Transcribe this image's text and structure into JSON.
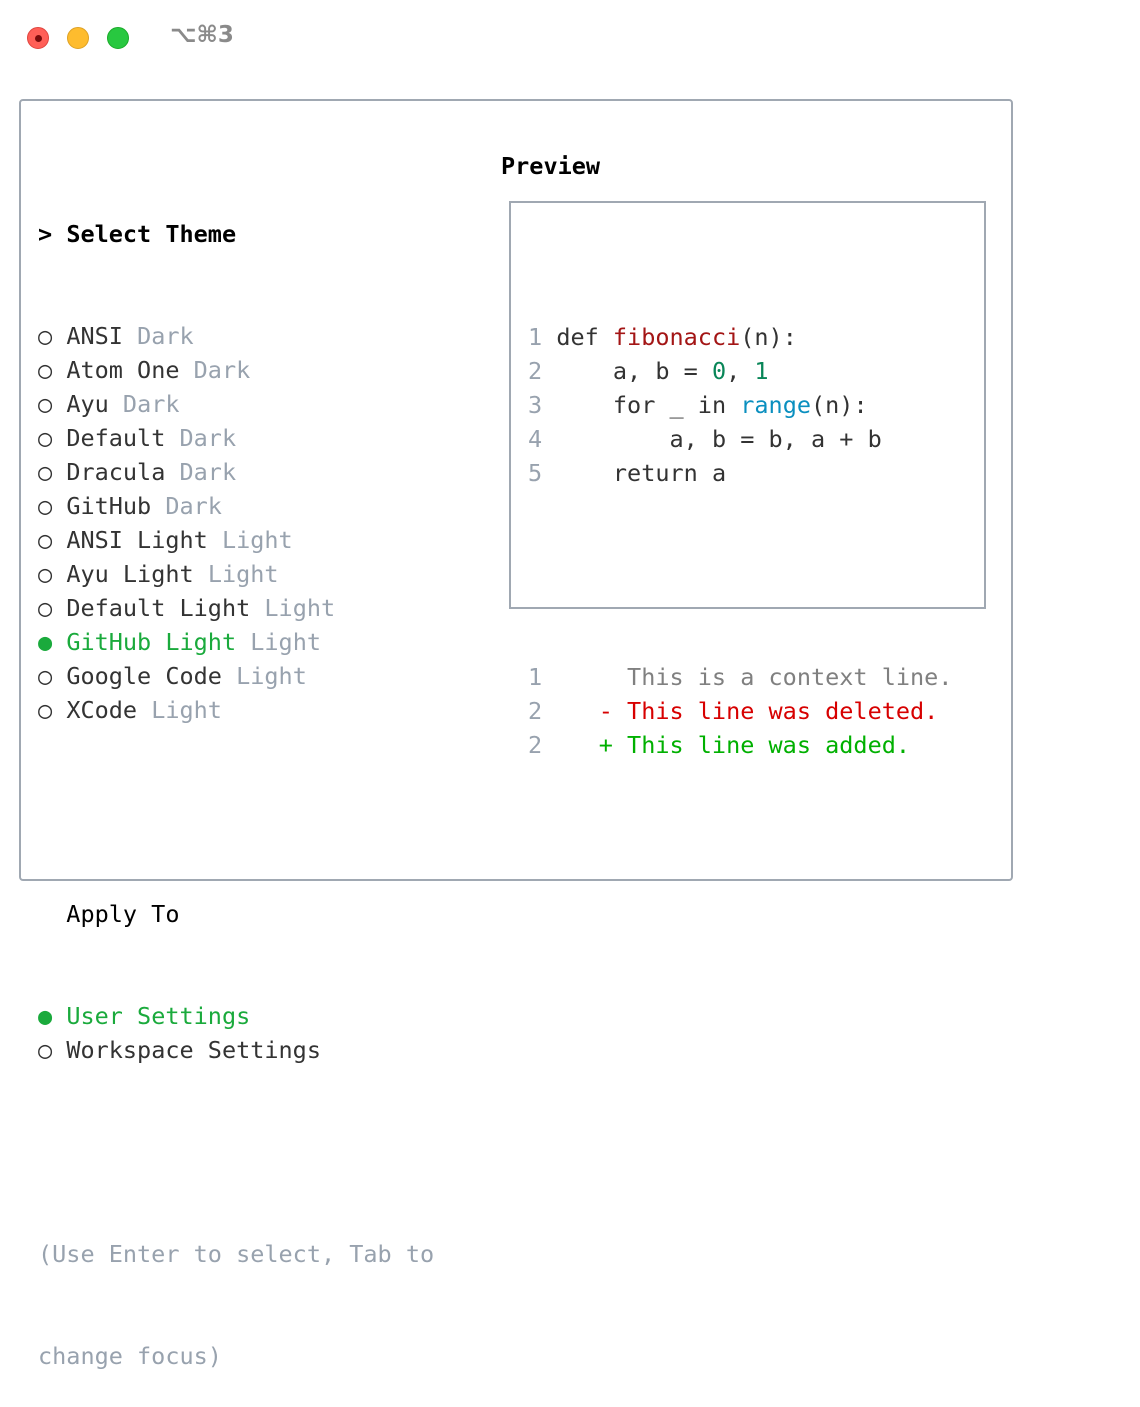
{
  "window": {
    "shortcut": "⌥⌘3",
    "controls": {
      "close_color": "#ff5f57",
      "minimize_color": "#febc2e",
      "zoom_color": "#28c840"
    }
  },
  "theme_section": {
    "prompt": ">",
    "title": "Select Theme",
    "items": [
      {
        "name": "ANSI",
        "variant": "Dark",
        "selected": false
      },
      {
        "name": "Atom One",
        "variant": "Dark",
        "selected": false
      },
      {
        "name": "Ayu",
        "variant": "Dark",
        "selected": false
      },
      {
        "name": "Default",
        "variant": "Dark",
        "selected": false
      },
      {
        "name": "Dracula",
        "variant": "Dark",
        "selected": false
      },
      {
        "name": "GitHub",
        "variant": "Dark",
        "selected": false
      },
      {
        "name": "ANSI Light",
        "variant": "Light",
        "selected": false
      },
      {
        "name": "Ayu Light",
        "variant": "Light",
        "selected": false
      },
      {
        "name": "Default Light",
        "variant": "Light",
        "selected": false
      },
      {
        "name": "GitHub Light",
        "variant": "Light",
        "selected": true
      },
      {
        "name": "Google Code",
        "variant": "Light",
        "selected": false
      },
      {
        "name": "XCode",
        "variant": "Light",
        "selected": false
      }
    ]
  },
  "apply_section": {
    "title": "Apply To",
    "items": [
      {
        "name": "User Settings",
        "selected": true
      },
      {
        "name": "Workspace Settings",
        "selected": false
      }
    ]
  },
  "help_lines": [
    "(Use Enter to select, Tab to",
    "change focus)"
  ],
  "radio": {
    "on": "●",
    "off": "○"
  },
  "colors": {
    "selected": "#1aaa3c",
    "dim": "#98a2ae",
    "keyword_fn": "#a31515",
    "number": "#098658",
    "builtin": "#0a8fbf",
    "deleted": "#d70000",
    "added": "#00b000",
    "context": "#808080"
  },
  "preview": {
    "title": "Preview",
    "code_lines": [
      {
        "num": "1",
        "tokens": [
          {
            "t": "def ",
            "c": "#333333"
          },
          {
            "t": "fibonacci",
            "c": "#a31515"
          },
          {
            "t": "(n):",
            "c": "#333333"
          }
        ]
      },
      {
        "num": "2",
        "tokens": [
          {
            "t": "    a, b = ",
            "c": "#333333"
          },
          {
            "t": "0",
            "c": "#098658"
          },
          {
            "t": ", ",
            "c": "#333333"
          },
          {
            "t": "1",
            "c": "#098658"
          }
        ]
      },
      {
        "num": "3",
        "tokens": [
          {
            "t": "    for _ in ",
            "c": "#333333"
          },
          {
            "t": "range",
            "c": "#0a8fbf"
          },
          {
            "t": "(n):",
            "c": "#333333"
          }
        ]
      },
      {
        "num": "4",
        "tokens": [
          {
            "t": "        a, b = b, a + b",
            "c": "#333333"
          }
        ]
      },
      {
        "num": "5",
        "tokens": [
          {
            "t": "    return a",
            "c": "#333333"
          }
        ]
      }
    ],
    "diff_lines": [
      {
        "num": "1",
        "marker": " ",
        "text": "This is a context line.",
        "c": "#808080"
      },
      {
        "num": "2",
        "marker": "-",
        "text": "This line was deleted.",
        "c": "#d70000"
      },
      {
        "num": "2",
        "marker": "+",
        "text": "This line was added.",
        "c": "#00b000"
      }
    ]
  }
}
